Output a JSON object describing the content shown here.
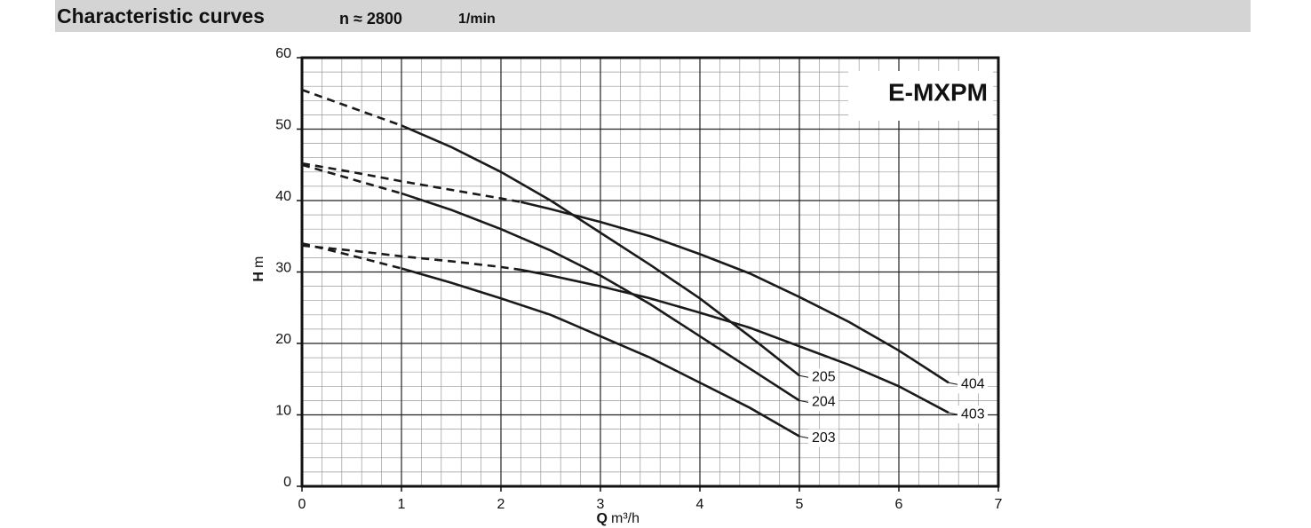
{
  "chart_data": {
    "type": "line",
    "title": "Characteristic curves",
    "speed": "n ≈ 2800",
    "speed_unit": "1/min",
    "inset_label": "E-MXPM",
    "x_label": {
      "symbol": "Q",
      "unit": "m³/h"
    },
    "y_label": {
      "symbol": "H",
      "unit": "m"
    },
    "xlim": [
      0,
      7
    ],
    "xticks": [
      0,
      1,
      2,
      3,
      4,
      5,
      6,
      7
    ],
    "ylim": [
      0,
      60
    ],
    "yticks": [
      0,
      10,
      20,
      30,
      40,
      50,
      60
    ],
    "grid": true,
    "minor_grid_divisions": 5,
    "series": [
      {
        "name": "205",
        "color": "#1a1a1a",
        "dashed_through": 1,
        "x": [
          0,
          0.5,
          1,
          1.5,
          2,
          2.5,
          3,
          3.5,
          4,
          4.5,
          5
        ],
        "values": [
          55.5,
          53,
          50.5,
          47.5,
          44,
          40,
          35.5,
          31,
          26.3,
          21,
          15.5
        ]
      },
      {
        "name": "204",
        "color": "#1a1a1a",
        "dashed_through": 1,
        "x": [
          0,
          0.5,
          1,
          1.5,
          2,
          2.5,
          3,
          3.5,
          4,
          4.5,
          5
        ],
        "values": [
          45,
          43,
          41,
          38.7,
          36,
          33,
          29.5,
          25.5,
          21,
          16.5,
          12
        ]
      },
      {
        "name": "203",
        "color": "#1a1a1a",
        "dashed_through": 1,
        "x": [
          0,
          0.5,
          1,
          1.5,
          2,
          2.5,
          3,
          3.5,
          4,
          4.5,
          5
        ],
        "values": [
          34,
          32.3,
          30.5,
          28.5,
          26.3,
          24,
          21,
          18,
          14.5,
          11,
          7
        ]
      },
      {
        "name": "404",
        "color": "#1a1a1a",
        "dashed_through": 2.2,
        "x": [
          0,
          0.5,
          1,
          1.5,
          2,
          2.2,
          2.5,
          3,
          3.5,
          4,
          4.5,
          5,
          5.5,
          6,
          6.5
        ],
        "values": [
          45.2,
          44,
          42.7,
          41.5,
          40.3,
          39.8,
          38.8,
          37,
          35,
          32.5,
          29.8,
          26.5,
          23,
          19,
          14.5
        ]
      },
      {
        "name": "403",
        "color": "#1a1a1a",
        "dashed_through": 2.2,
        "x": [
          0,
          0.5,
          1,
          1.5,
          2,
          2.2,
          2.5,
          3,
          3.5,
          4,
          4.5,
          5,
          5.5,
          6,
          6.5
        ],
        "values": [
          33.7,
          33,
          32.2,
          31.5,
          30.7,
          30.3,
          29.5,
          28,
          26.3,
          24.3,
          22.2,
          19.6,
          17,
          14,
          10.3
        ]
      }
    ]
  }
}
